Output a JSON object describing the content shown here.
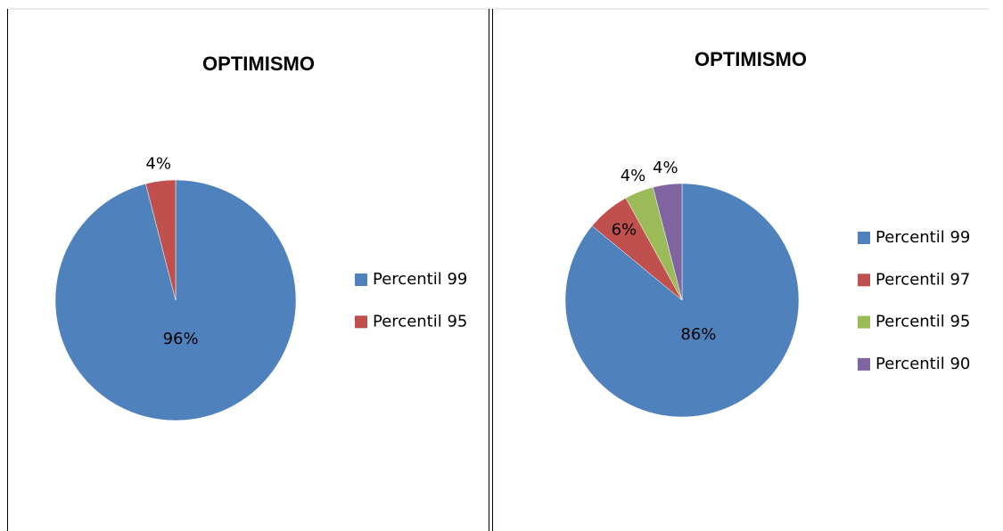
{
  "chart_data": [
    {
      "type": "pie",
      "title": "OPTIMISMO",
      "categories": [
        "Percentil 99",
        "Percentil 95"
      ],
      "values": [
        96,
        4
      ],
      "value_labels": [
        "96%",
        "4%"
      ],
      "colors": [
        "#4f81bd",
        "#c0504d"
      ],
      "legend": "right"
    },
    {
      "type": "pie",
      "title": "OPTIMISMO",
      "categories": [
        "Percentil 99",
        "Percentil 97",
        "Percentil 95",
        "Percentil 90"
      ],
      "values": [
        86,
        6,
        4,
        4
      ],
      "value_labels": [
        "86%",
        "6%",
        "4%",
        "4%"
      ],
      "colors": [
        "#4f81bd",
        "#c0504d",
        "#9bbb59",
        "#8064a2"
      ],
      "legend": "right"
    }
  ]
}
